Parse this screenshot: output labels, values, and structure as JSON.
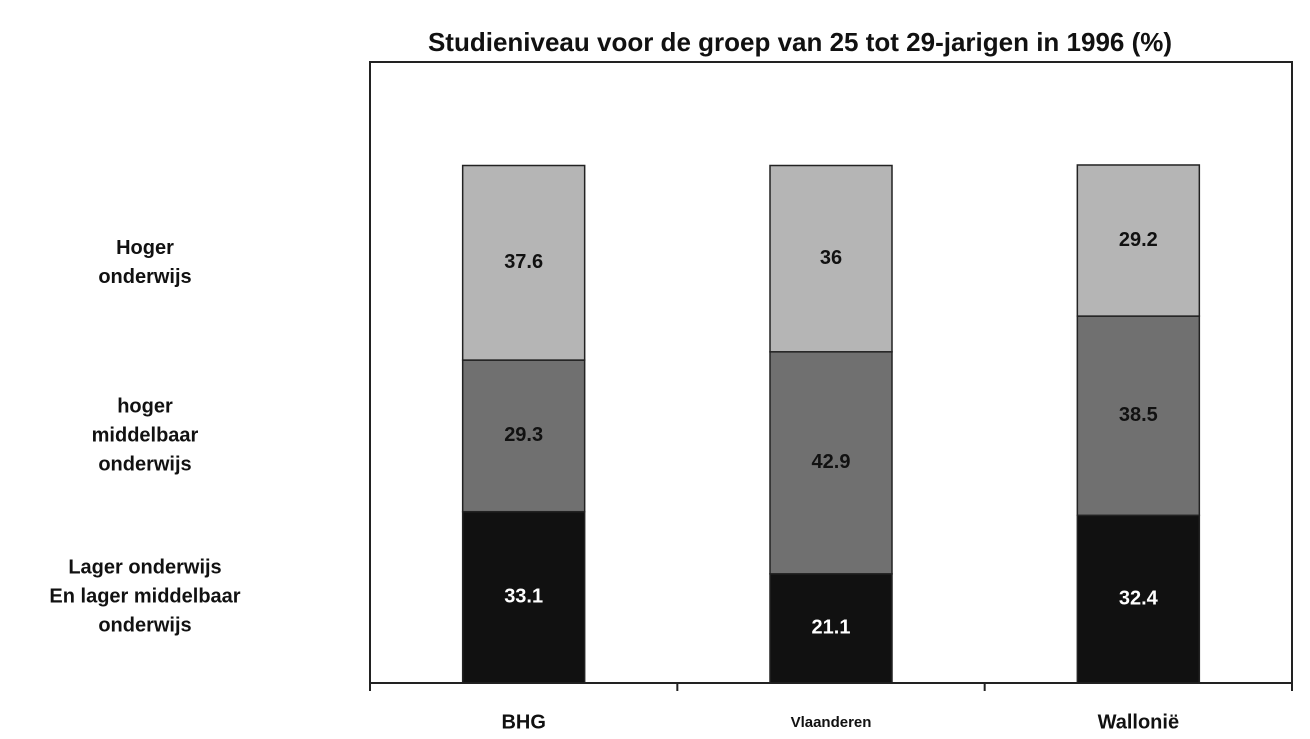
{
  "chart_data": {
    "type": "stacked_bar",
    "title": "Studieniveau voor de groep van 25 tot 29-jarigen in 1996 (%)",
    "categories": [
      "BHG",
      "Vlaanderen",
      "Wallonië"
    ],
    "series": [
      {
        "name": "Lager onderwijs\nEn lager middelbaar\nonderwijs",
        "color": "#111111",
        "label_color": "#ffffff",
        "values": [
          33.1,
          21.1,
          32.4
        ]
      },
      {
        "name": "hoger\nmiddelbaar\nonderwijs",
        "color": "#707070",
        "label_color": "#111111",
        "values": [
          29.3,
          42.9,
          38.5
        ]
      },
      {
        "name": "Hoger\nonderwijs",
        "color": "#b5b5b5",
        "label_color": "#111111",
        "values": [
          37.6,
          36,
          29.2
        ]
      }
    ],
    "ylim": [
      0,
      120
    ]
  }
}
